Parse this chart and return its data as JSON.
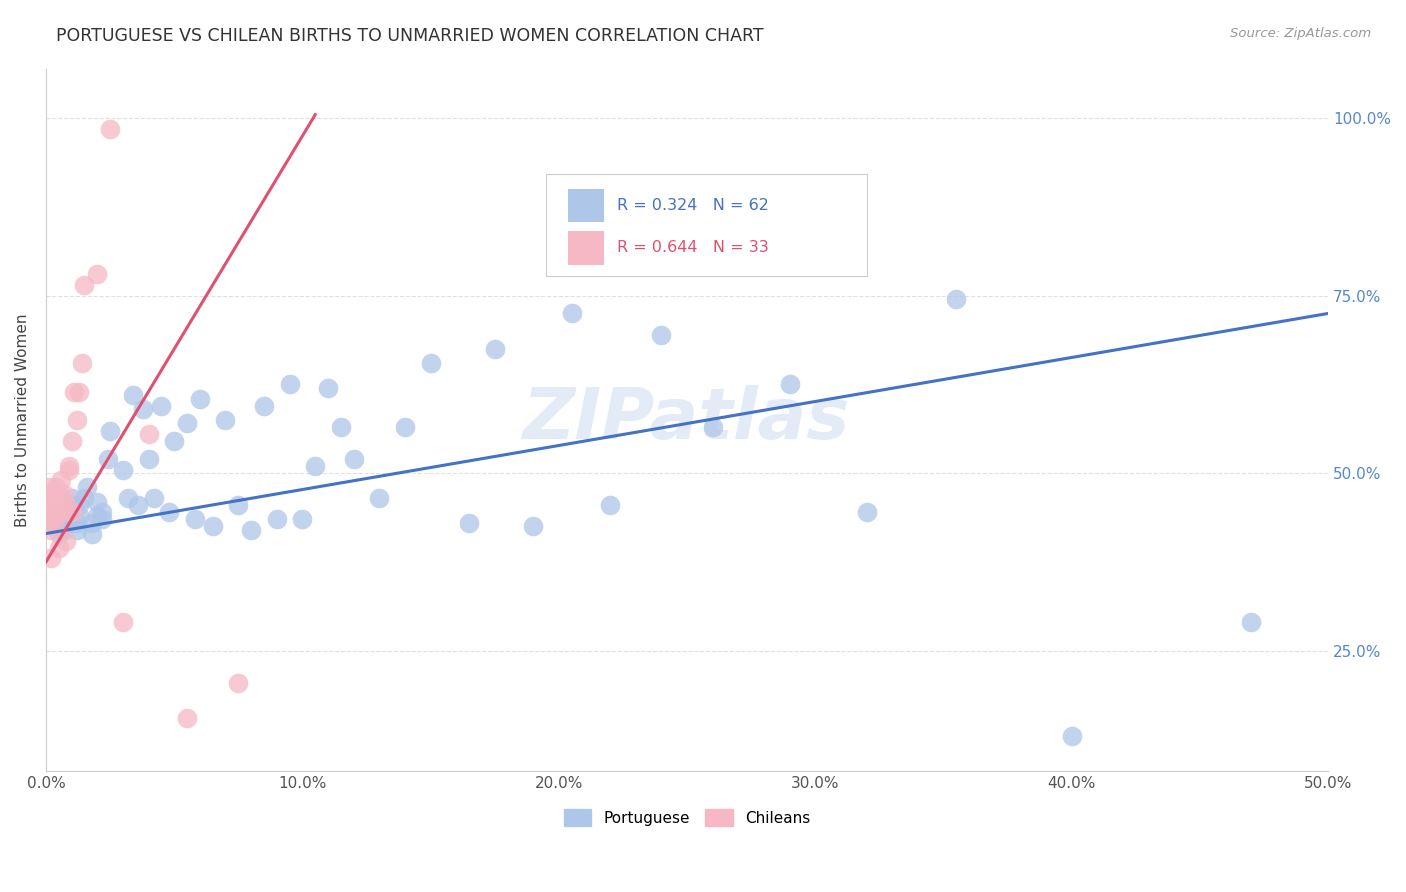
{
  "title": "PORTUGUESE VS CHILEAN BIRTHS TO UNMARRIED WOMEN CORRELATION CHART",
  "source": "Source: ZipAtlas.com",
  "ylabel": "Births to Unmarried Women",
  "xlim": [
    0.0,
    0.5
  ],
  "ylim": [
    0.08,
    1.07
  ],
  "xtick_labels": [
    "0.0%",
    "",
    "",
    "",
    "",
    "",
    "",
    "",
    "",
    "",
    "10.0%",
    "",
    "",
    "",
    "",
    "",
    "",
    "",
    "",
    "",
    "20.0%",
    "",
    "",
    "",
    "",
    "",
    "",
    "",
    "",
    "",
    "30.0%",
    "",
    "",
    "",
    "",
    "",
    "",
    "",
    "",
    "",
    "40.0%",
    "",
    "",
    "",
    "",
    "",
    "",
    "",
    "",
    "",
    "50.0%"
  ],
  "xtick_vals": [
    0.0,
    0.01,
    0.02,
    0.03,
    0.04,
    0.05,
    0.06,
    0.07,
    0.08,
    0.09,
    0.1,
    0.11,
    0.12,
    0.13,
    0.14,
    0.15,
    0.16,
    0.17,
    0.18,
    0.19,
    0.2,
    0.21,
    0.22,
    0.23,
    0.24,
    0.25,
    0.26,
    0.27,
    0.28,
    0.29,
    0.3,
    0.31,
    0.32,
    0.33,
    0.34,
    0.35,
    0.36,
    0.37,
    0.38,
    0.39,
    0.4,
    0.41,
    0.42,
    0.43,
    0.44,
    0.45,
    0.46,
    0.47,
    0.48,
    0.49,
    0.5
  ],
  "ytick_vals": [
    0.25,
    0.5,
    0.75,
    1.0
  ],
  "ytick_labels": [
    "25.0%",
    "50.0%",
    "75.0%",
    "100.0%"
  ],
  "portuguese_R": "R = 0.324",
  "portuguese_N": "N = 62",
  "chilean_R": "R = 0.644",
  "chilean_N": "N = 33",
  "blue_scatter_color": "#aec6e8",
  "pink_scatter_color": "#f5b8c4",
  "blue_line_color": "#4472c4",
  "pink_line_color": "#e05070",
  "blue_text_color": "#4472c4",
  "pink_text_color": "#e05070",
  "right_axis_color": "#5588cc",
  "grid_color": "#e0e0e0",
  "watermark": "ZIPatlas",
  "watermark_color": "#c8d8ee",
  "port_x": [
    0.003,
    0.003,
    0.005,
    0.007,
    0.008,
    0.009,
    0.01,
    0.01,
    0.012,
    0.012,
    0.013,
    0.013,
    0.015,
    0.016,
    0.018,
    0.018,
    0.02,
    0.02,
    0.022,
    0.022,
    0.024,
    0.025,
    0.03,
    0.032,
    0.034,
    0.036,
    0.038,
    0.04,
    0.042,
    0.045,
    0.048,
    0.05,
    0.055,
    0.058,
    0.06,
    0.065,
    0.07,
    0.075,
    0.08,
    0.085,
    0.09,
    0.095,
    0.1,
    0.105,
    0.11,
    0.115,
    0.12,
    0.13,
    0.14,
    0.15,
    0.165,
    0.175,
    0.19,
    0.205,
    0.22,
    0.24,
    0.26,
    0.29,
    0.32,
    0.355,
    0.4,
    0.47
  ],
  "port_y": [
    0.43,
    0.445,
    0.415,
    0.42,
    0.435,
    0.44,
    0.455,
    0.465,
    0.42,
    0.43,
    0.44,
    0.455,
    0.465,
    0.48,
    0.415,
    0.43,
    0.44,
    0.46,
    0.435,
    0.445,
    0.52,
    0.56,
    0.505,
    0.465,
    0.61,
    0.455,
    0.59,
    0.52,
    0.465,
    0.595,
    0.445,
    0.545,
    0.57,
    0.435,
    0.605,
    0.425,
    0.575,
    0.455,
    0.42,
    0.595,
    0.435,
    0.625,
    0.435,
    0.51,
    0.62,
    0.565,
    0.52,
    0.465,
    0.565,
    0.655,
    0.43,
    0.675,
    0.425,
    0.725,
    0.455,
    0.695,
    0.565,
    0.625,
    0.445,
    0.745,
    0.13,
    0.29
  ],
  "chile_x": [
    0.001,
    0.001,
    0.001,
    0.001,
    0.002,
    0.002,
    0.002,
    0.003,
    0.003,
    0.004,
    0.004,
    0.005,
    0.005,
    0.006,
    0.006,
    0.007,
    0.008,
    0.008,
    0.009,
    0.009,
    0.01,
    0.01,
    0.011,
    0.012,
    0.013,
    0.014,
    0.015,
    0.02,
    0.025,
    0.03,
    0.04,
    0.055,
    0.075
  ],
  "chile_y": [
    0.435,
    0.445,
    0.47,
    0.48,
    0.38,
    0.42,
    0.465,
    0.43,
    0.455,
    0.48,
    0.44,
    0.395,
    0.47,
    0.445,
    0.49,
    0.47,
    0.405,
    0.455,
    0.505,
    0.51,
    0.445,
    0.545,
    0.615,
    0.575,
    0.615,
    0.655,
    0.765,
    0.78,
    0.985,
    0.29,
    0.555,
    0.155,
    0.205
  ],
  "port_line_x0": 0.0,
  "port_line_x1": 0.5,
  "port_line_y0": 0.415,
  "port_line_y1": 0.725,
  "chile_line_x0": 0.0,
  "chile_line_x1": 0.105,
  "chile_line_y0": 0.375,
  "chile_line_y1": 1.005
}
